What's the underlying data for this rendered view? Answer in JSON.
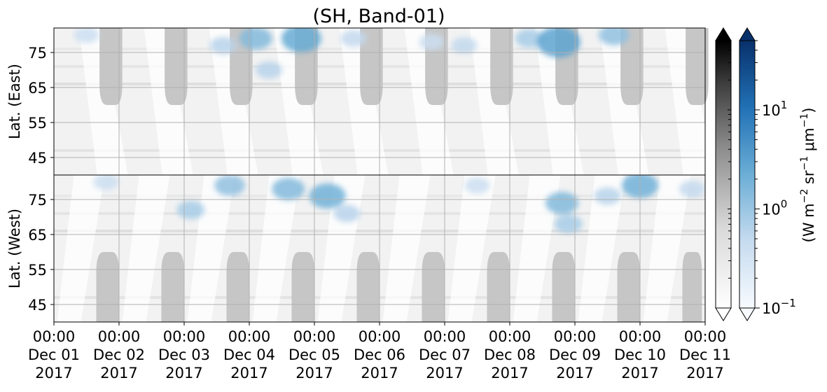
{
  "chart_data": {
    "type": "heatmap",
    "title": "(SH, Band-01)",
    "panels": [
      {
        "name": "east",
        "ylabel": "Lat. (East)",
        "ylim": [
          40,
          82
        ],
        "yticks": [
          "45",
          "55",
          "65",
          "75"
        ]
      },
      {
        "name": "west",
        "ylabel": "Lat. (West)",
        "ylim": [
          82,
          40
        ],
        "yticks": [
          "75",
          "65",
          "55",
          "45"
        ]
      }
    ],
    "x_ticks": [
      {
        "time": "00:00",
        "date": "Dec 01",
        "year": "2017"
      },
      {
        "time": "00:00",
        "date": "Dec 02",
        "year": "2017"
      },
      {
        "time": "00:00",
        "date": "Dec 03",
        "year": "2017"
      },
      {
        "time": "00:00",
        "date": "Dec 04",
        "year": "2017"
      },
      {
        "time": "00:00",
        "date": "Dec 05",
        "year": "2017"
      },
      {
        "time": "00:00",
        "date": "Dec 06",
        "year": "2017"
      },
      {
        "time": "00:00",
        "date": "Dec 07",
        "year": "2017"
      },
      {
        "time": "00:00",
        "date": "Dec 08",
        "year": "2017"
      },
      {
        "time": "00:00",
        "date": "Dec 09",
        "year": "2017"
      },
      {
        "time": "00:00",
        "date": "Dec 10",
        "year": "2017"
      },
      {
        "time": "00:00",
        "date": "Dec 11",
        "year": "2017"
      }
    ],
    "xlim": [
      "2017-12-01 00:00",
      "2017-12-11 00:00"
    ],
    "grid": true,
    "colorbars": [
      {
        "name": "gray",
        "cmap": "Greys",
        "extend": "both"
      },
      {
        "name": "blue",
        "cmap": "Blues",
        "extend": "both",
        "scale": "log",
        "range": [
          0.1,
          50
        ],
        "ticks": [
          "10",
          "10",
          "10"
        ],
        "tick_exponents": [
          "1",
          "0",
          "−1"
        ]
      }
    ],
    "colorbar_label": {
      "prefix": "(W m",
      "e1": "−2",
      "mid": " sr",
      "e2": "−1",
      "mid2": " μm",
      "e3": "−1",
      "suffix": ")"
    },
    "no_data_regions": {
      "east": [
        [
          0.7,
          1.05,
          60
        ],
        [
          1.7,
          2.05,
          60
        ],
        [
          2.7,
          3.05,
          60
        ],
        [
          3.7,
          4.05,
          60
        ],
        [
          4.7,
          5.05,
          60
        ],
        [
          5.7,
          6.05,
          60
        ],
        [
          6.7,
          7.05,
          60
        ],
        [
          7.7,
          8.05,
          60
        ],
        [
          8.7,
          9.05,
          60
        ],
        [
          9.7,
          10.05,
          60
        ]
      ],
      "west": [
        [
          0.65,
          1.0,
          60
        ],
        [
          1.65,
          2.0,
          60
        ],
        [
          2.65,
          3.0,
          60
        ],
        [
          3.65,
          4.0,
          60
        ],
        [
          4.65,
          5.0,
          60
        ],
        [
          5.65,
          6.0,
          60
        ],
        [
          6.65,
          7.0,
          60
        ],
        [
          7.65,
          8.0,
          60
        ],
        [
          8.65,
          9.0,
          60
        ],
        [
          9.65,
          9.95,
          60
        ]
      ]
    },
    "aurora_features": [
      {
        "panel": "east",
        "day": 0.5,
        "lat": 80,
        "value": 0.4
      },
      {
        "panel": "west",
        "day": 0.8,
        "lat": 80,
        "value": 0.4
      },
      {
        "panel": "west",
        "day": 2.1,
        "lat": 72,
        "value": 0.8
      },
      {
        "panel": "east",
        "day": 2.6,
        "lat": 77,
        "value": 0.6
      },
      {
        "panel": "east",
        "day": 3.1,
        "lat": 79,
        "value": 1.5
      },
      {
        "panel": "east",
        "day": 3.3,
        "lat": 70,
        "value": 0.6
      },
      {
        "panel": "west",
        "day": 2.7,
        "lat": 79,
        "value": 1.2
      },
      {
        "panel": "west",
        "day": 3.6,
        "lat": 78,
        "value": 1.5
      },
      {
        "panel": "east",
        "day": 3.8,
        "lat": 79,
        "value": 2.5
      },
      {
        "panel": "west",
        "day": 4.2,
        "lat": 76,
        "value": 2.0
      },
      {
        "panel": "west",
        "day": 4.5,
        "lat": 71,
        "value": 0.6
      },
      {
        "panel": "east",
        "day": 4.6,
        "lat": 79,
        "value": 0.5
      },
      {
        "panel": "east",
        "day": 5.8,
        "lat": 78,
        "value": 0.4
      },
      {
        "panel": "east",
        "day": 6.3,
        "lat": 77,
        "value": 0.5
      },
      {
        "panel": "west",
        "day": 6.5,
        "lat": 79,
        "value": 0.4
      },
      {
        "panel": "east",
        "day": 7.3,
        "lat": 79,
        "value": 0.8
      },
      {
        "panel": "east",
        "day": 7.75,
        "lat": 78,
        "value": 3.0
      },
      {
        "panel": "west",
        "day": 7.8,
        "lat": 74,
        "value": 1.5
      },
      {
        "panel": "west",
        "day": 7.9,
        "lat": 68,
        "value": 0.8
      },
      {
        "panel": "west",
        "day": 8.5,
        "lat": 76,
        "value": 0.6
      },
      {
        "panel": "east",
        "day": 8.6,
        "lat": 80,
        "value": 1.2
      },
      {
        "panel": "west",
        "day": 9.0,
        "lat": 79,
        "value": 2.0
      },
      {
        "panel": "west",
        "day": 9.8,
        "lat": 78,
        "value": 0.5
      }
    ]
  }
}
